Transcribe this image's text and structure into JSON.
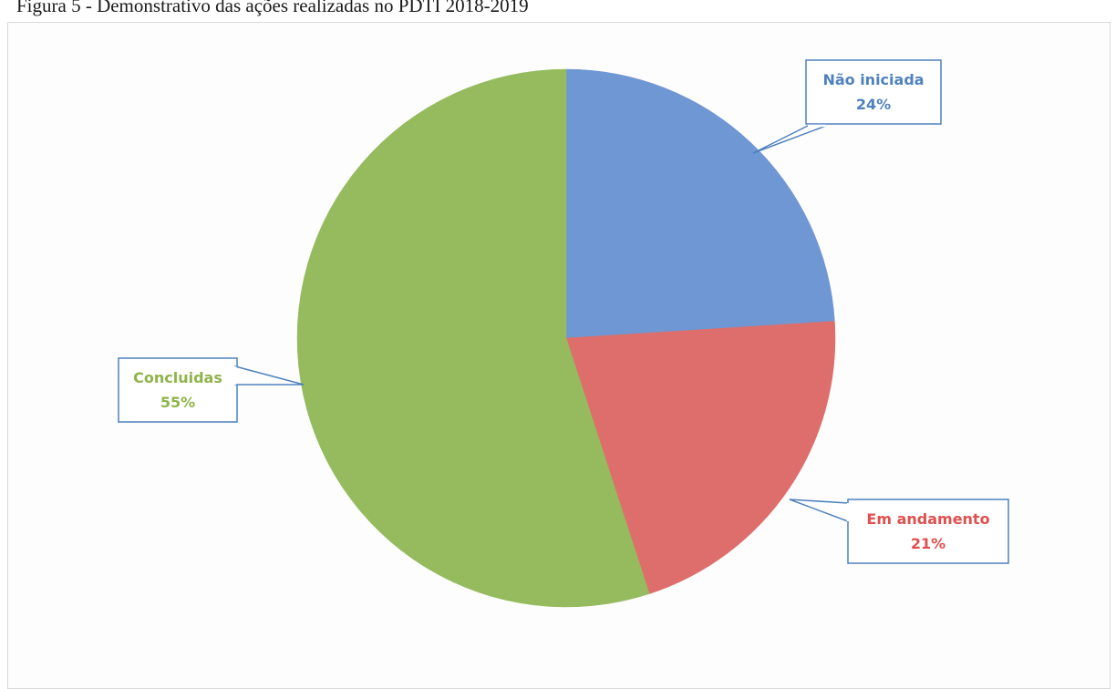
{
  "caption": "Figura 5 - Demonstrativo das ações realizadas no PDTI 2018-2019",
  "chart_data": {
    "type": "pie",
    "title": "",
    "slices": [
      {
        "name": "Não iniciada",
        "value": 24,
        "label": "24%",
        "color": "#6f97d3",
        "label_color": "#4f81bd"
      },
      {
        "name": "Em andamento",
        "value": 21,
        "label": "21%",
        "color": "#de6e6b",
        "label_color": "#e0504d"
      },
      {
        "name": "Concluidas",
        "value": 55,
        "label": "55%",
        "color": "#95bb5e",
        "label_color": "#8eb44a"
      }
    ],
    "start_angle": "12 o'clock",
    "direction": "clockwise",
    "callout_border_color": "#4f81bd",
    "legend": "none"
  }
}
